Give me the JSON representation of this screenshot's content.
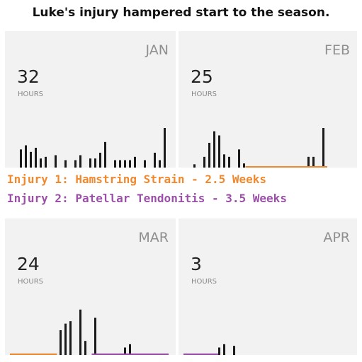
{
  "title": "Luke's injury hampered start to the season.",
  "injuries": [
    {
      "text": "Injury 1: Hamstring Strain - 2.5 Weeks",
      "color": "#f0882e"
    },
    {
      "text": "Injury 2: Patellar Tendonitis - 3.5 Weeks",
      "color": "#9b4fa8"
    }
  ],
  "hours_label": "HOURS",
  "colors": {
    "bar": "#1a1a1a",
    "panel": "#f2f2f2",
    "injury1": "#f0882e",
    "injury2": "#9b4fa8"
  },
  "chart_data": [
    {
      "type": "bar",
      "month": "JAN",
      "total_hours": "32",
      "ylim": [
        0,
        3
      ],
      "bars": [
        {
          "day": 2,
          "value": 1.1
        },
        {
          "day": 3,
          "value": 1.35
        },
        {
          "day": 4,
          "value": 0.95
        },
        {
          "day": 5,
          "value": 1.2
        },
        {
          "day": 6,
          "value": 0.55
        },
        {
          "day": 7,
          "value": 0.65
        },
        {
          "day": 9,
          "value": 0.75
        },
        {
          "day": 11,
          "value": 0.45
        },
        {
          "day": 13,
          "value": 0.45
        },
        {
          "day": 14,
          "value": 0.75
        },
        {
          "day": 16,
          "value": 0.55
        },
        {
          "day": 17,
          "value": 0.55
        },
        {
          "day": 18,
          "value": 0.9
        },
        {
          "day": 19,
          "value": 1.55
        },
        {
          "day": 21,
          "value": 0.45
        },
        {
          "day": 22,
          "value": 0.45
        },
        {
          "day": 23,
          "value": 0.45
        },
        {
          "day": 24,
          "value": 0.45
        },
        {
          "day": 25,
          "value": 0.65
        },
        {
          "day": 27,
          "value": 0.45
        },
        {
          "day": 29,
          "value": 0.9
        },
        {
          "day": 30,
          "value": 0.45
        },
        {
          "day": 31,
          "value": 2.4
        }
      ],
      "injury_periods": []
    },
    {
      "type": "bar",
      "month": "FEB",
      "total_hours": "25",
      "ylim": [
        0,
        3
      ],
      "bars": [
        {
          "day": 2,
          "value": 0.2
        },
        {
          "day": 4,
          "value": 0.65
        },
        {
          "day": 5,
          "value": 1.5
        },
        {
          "day": 6,
          "value": 2.2
        },
        {
          "day": 7,
          "value": 1.95
        },
        {
          "day": 8,
          "value": 0.8
        },
        {
          "day": 9,
          "value": 0.65
        },
        {
          "day": 11,
          "value": 1.1
        },
        {
          "day": 12,
          "value": 0.25
        },
        {
          "day": 25,
          "value": 0.65
        },
        {
          "day": 26,
          "value": 0.65
        },
        {
          "day": 28,
          "value": 2.4
        }
      ],
      "injury_periods": [
        {
          "injury": 1,
          "from": 12.5,
          "to": 29
        }
      ]
    },
    {
      "type": "bar",
      "month": "MAR",
      "total_hours": "24",
      "ylim": [
        0,
        3
      ],
      "bars": [
        {
          "day": 10,
          "value": 1.5
        },
        {
          "day": 11,
          "value": 1.9
        },
        {
          "day": 12,
          "value": 2.05
        },
        {
          "day": 14,
          "value": 2.75
        },
        {
          "day": 15,
          "value": 0.85
        },
        {
          "day": 17,
          "value": 2.25
        },
        {
          "day": 23,
          "value": 0.45
        },
        {
          "day": 24,
          "value": 0.65
        }
      ],
      "injury_periods": [
        {
          "injury": 1,
          "from": 0,
          "to": 9.5
        },
        {
          "injury": 2,
          "from": 16.5,
          "to": 32
        }
      ]
    },
    {
      "type": "bar",
      "month": "APR",
      "total_hours": "3",
      "ylim": [
        0,
        3
      ],
      "bars": [
        {
          "day": 7,
          "value": 0.45
        },
        {
          "day": 8,
          "value": 0.65
        },
        {
          "day": 10,
          "value": 0.55
        }
      ],
      "injury_periods": [
        {
          "injury": 2,
          "from": 0,
          "to": 7
        }
      ]
    }
  ]
}
